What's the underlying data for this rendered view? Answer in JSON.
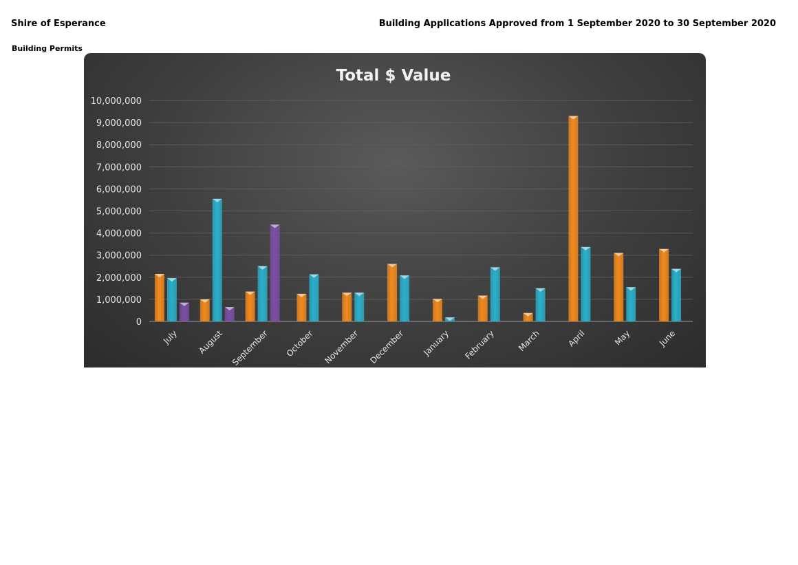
{
  "header": {
    "org_name": "Shire of Esperance",
    "report_title": "Building Applications Approved from 1 September 2020 to 30 September 2020",
    "section": "Building Permits"
  },
  "chart_data": {
    "type": "bar",
    "title": "Total $ Value",
    "xlabel": "",
    "ylabel": "",
    "ylim": [
      0,
      10000000
    ],
    "yticks": [
      0,
      1000000,
      2000000,
      3000000,
      4000000,
      5000000,
      6000000,
      7000000,
      8000000,
      9000000,
      10000000
    ],
    "ytick_labels": [
      "0",
      "1,000,000",
      "2,000,000",
      "3,000,000",
      "4,000,000",
      "5,000,000",
      "6,000,000",
      "7,000,000",
      "8,000,000",
      "9,000,000",
      "10,000,000"
    ],
    "grid": true,
    "legend": "none",
    "categories": [
      "July",
      "August",
      "September",
      "October",
      "November",
      "December",
      "January",
      "February",
      "March",
      "April",
      "May",
      "June"
    ],
    "series": [
      {
        "color": "#f28a1c",
        "values": [
          2150000,
          1000000,
          1350000,
          1250000,
          1300000,
          2600000,
          1020000,
          1170000,
          380000,
          9300000,
          3100000,
          3280000
        ]
      },
      {
        "color": "#2ab0cc",
        "values": [
          1960000,
          5550000,
          2500000,
          2130000,
          1300000,
          2080000,
          180000,
          2450000,
          1500000,
          3370000,
          1550000,
          2380000
        ]
      },
      {
        "color": "#7b4fa6",
        "values": [
          850000,
          650000,
          4380000,
          null,
          null,
          null,
          null,
          null,
          null,
          null,
          null,
          null
        ]
      }
    ]
  }
}
